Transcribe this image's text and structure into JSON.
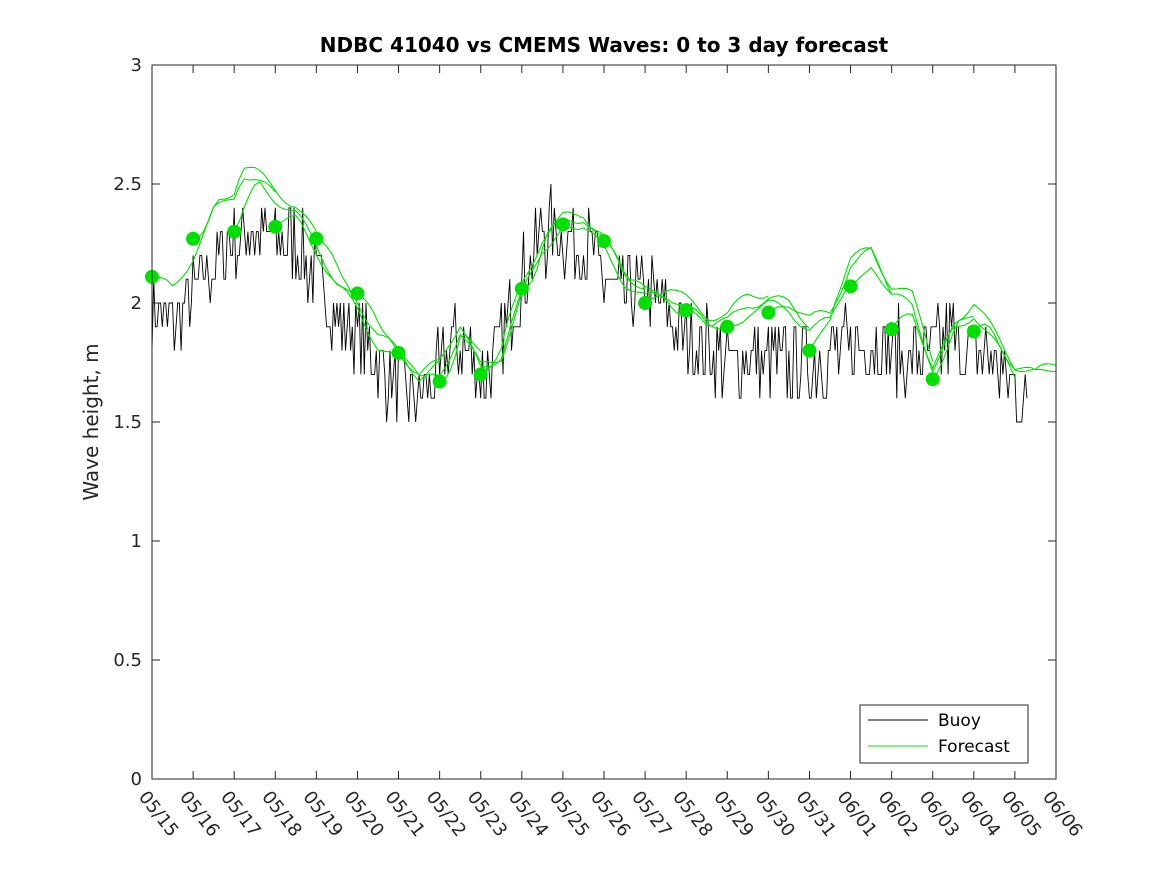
{
  "chart_data": {
    "type": "line",
    "title": "NDBC 41040 vs CMEMS Waves: 0 to 3 day forecast",
    "ylabel": "Wave height, m",
    "xlabel": "",
    "ylim": [
      0,
      3
    ],
    "yticks": [
      0,
      0.5,
      1,
      1.5,
      2,
      2.5,
      3
    ],
    "xlim": [
      "05/15",
      "06/06"
    ],
    "xticks": [
      "05/15",
      "05/16",
      "05/17",
      "05/18",
      "05/19",
      "05/20",
      "05/21",
      "05/22",
      "05/23",
      "05/24",
      "05/25",
      "05/26",
      "05/27",
      "05/28",
      "05/29",
      "05/30",
      "05/31",
      "06/01",
      "06/02",
      "06/03",
      "06/04",
      "06/05",
      "06/06"
    ],
    "grid": false,
    "legend_position": "bottom-right",
    "legend": [
      {
        "name": "Buoy",
        "color": "#000000"
      },
      {
        "name": "Forecast",
        "color": "#00e000"
      }
    ],
    "buoy_control_points": {
      "day": [
        0,
        0.3,
        0.6,
        1.0,
        1.5,
        2.0,
        2.5,
        3.0,
        3.5,
        4.0,
        4.5,
        5.0,
        5.5,
        6.0,
        6.5,
        7.0,
        7.3,
        7.6,
        8.0,
        8.3,
        8.6,
        9.0,
        9.5,
        10.0,
        10.5,
        11.0,
        11.5,
        12.0,
        12.5,
        13.0,
        13.5,
        14.0,
        15.0,
        16.0,
        17.0,
        17.5,
        18.0,
        18.5,
        19.0,
        19.5,
        20.0,
        20.5,
        21.0,
        21.3
      ],
      "height": [
        2.0,
        1.92,
        1.9,
        2.05,
        2.15,
        2.28,
        2.3,
        2.28,
        2.25,
        2.1,
        1.95,
        1.85,
        1.75,
        1.65,
        1.6,
        1.7,
        1.85,
        1.85,
        1.7,
        1.75,
        1.9,
        2.1,
        2.3,
        2.28,
        2.25,
        2.1,
        2.0,
        2.05,
        1.95,
        1.85,
        1.8,
        1.75,
        1.75,
        1.75,
        1.8,
        1.85,
        1.8,
        1.75,
        1.8,
        1.85,
        1.8,
        1.75,
        1.65,
        1.5
      ]
    },
    "forecast_start_points": {
      "day": [
        0,
        1,
        2,
        3,
        4,
        5,
        6,
        7,
        8,
        9,
        10,
        11,
        12,
        13,
        14,
        15,
        16,
        17,
        18,
        19,
        20
      ],
      "height": [
        2.11,
        2.27,
        2.3,
        2.32,
        2.27,
        2.04,
        1.79,
        1.67,
        1.7,
        2.06,
        2.33,
        2.26,
        2.0,
        1.97,
        1.9,
        1.96,
        1.8,
        2.07,
        1.89,
        1.68,
        1.88
      ]
    },
    "forecast_envelope": {
      "day": [
        0,
        0.5,
        1.0,
        1.5,
        2.0,
        2.2,
        2.5,
        3.0,
        3.5,
        4.0,
        4.5,
        5.0,
        5.5,
        6.0,
        6.5,
        7.0,
        7.5,
        8.0,
        8.5,
        9.0,
        9.5,
        10.0,
        10.5,
        11.0,
        11.5,
        12.0,
        12.5,
        13.0,
        13.5,
        14.0,
        14.5,
        15.0,
        15.5,
        16.0,
        16.5,
        17.0,
        17.5,
        18.0,
        18.5,
        19.0,
        19.5,
        20.0,
        20.5,
        21.0,
        21.5,
        22.0
      ],
      "height": [
        2.1,
        2.05,
        2.2,
        2.38,
        2.45,
        2.55,
        2.52,
        2.45,
        2.38,
        2.25,
        2.1,
        2.0,
        1.85,
        1.78,
        1.68,
        1.72,
        1.9,
        1.75,
        1.8,
        2.05,
        2.25,
        2.33,
        2.35,
        2.25,
        2.12,
        2.05,
        2.05,
        1.98,
        1.92,
        1.92,
        2.0,
        2.02,
        2.0,
        1.92,
        1.95,
        2.15,
        2.2,
        2.05,
        2.0,
        1.75,
        1.9,
        1.98,
        1.85,
        1.72,
        1.68,
        1.72
      ]
    }
  }
}
